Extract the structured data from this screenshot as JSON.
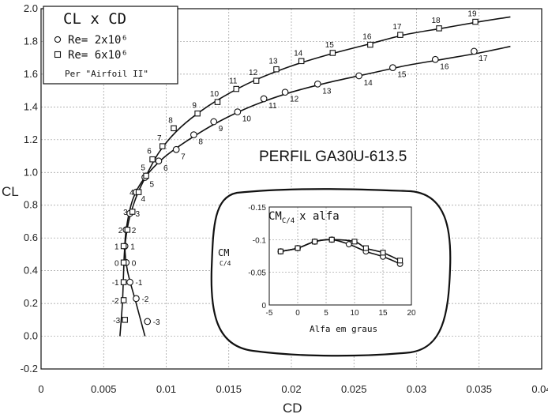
{
  "chart_data": [
    {
      "type": "line",
      "xlabel": "CD",
      "ylabel": "CL",
      "xlim": [
        0,
        0.04
      ],
      "ylim": [
        -0.2,
        2.0
      ],
      "xticks": [
        "0",
        "0.005",
        "0.01",
        "0.015",
        "0.02",
        "0.025",
        "0.03",
        "0.035",
        "0.04"
      ],
      "yticks": [
        "-0.2",
        "0.0",
        "0.2",
        "0.4",
        "0.6",
        "0.8",
        "1.0",
        "1.2",
        "1.4",
        "1.6",
        "1.8",
        "2.0"
      ],
      "grid": true,
      "legend": {
        "title": "CL x CD",
        "entries": [
          "Re= 2x10⁶",
          "Re= 6x10⁶"
        ],
        "note": "Per \"Airfoil II\"",
        "placement": "top-left"
      },
      "annotation": "PERFIL GA30U-613.5",
      "series": [
        {
          "name": "Re= 2x10⁶",
          "marker": "circle",
          "points": [
            {
              "cd": 0.0085,
              "cl": 0.09,
              "label": "-3"
            },
            {
              "cd": 0.0076,
              "cl": 0.23,
              "label": "-2"
            },
            {
              "cd": 0.0071,
              "cl": 0.33,
              "label": "-1"
            },
            {
              "cd": 0.0068,
              "cl": 0.45,
              "label": "0"
            },
            {
              "cd": 0.0067,
              "cl": 0.55,
              "label": "1"
            },
            {
              "cd": 0.0068,
              "cl": 0.65,
              "label": "2"
            },
            {
              "cd": 0.0071,
              "cl": 0.75,
              "label": "3"
            },
            {
              "cd": 0.0076,
              "cl": 0.88,
              "label": "4"
            },
            {
              "cd": 0.0083,
              "cl": 0.97,
              "label": "5"
            },
            {
              "cd": 0.0094,
              "cl": 1.07,
              "label": "6"
            },
            {
              "cd": 0.0108,
              "cl": 1.14,
              "label": "7"
            },
            {
              "cd": 0.0122,
              "cl": 1.23,
              "label": "8"
            },
            {
              "cd": 0.0138,
              "cl": 1.31,
              "label": "9"
            },
            {
              "cd": 0.0157,
              "cl": 1.37,
              "label": "10"
            },
            {
              "cd": 0.0178,
              "cl": 1.45,
              "label": "11"
            },
            {
              "cd": 0.0195,
              "cl": 1.49,
              "label": "12"
            },
            {
              "cd": 0.0221,
              "cl": 1.54,
              "label": "13"
            },
            {
              "cd": 0.0254,
              "cl": 1.59,
              "label": "14"
            },
            {
              "cd": 0.0281,
              "cl": 1.64,
              "label": "15"
            },
            {
              "cd": 0.0315,
              "cl": 1.69,
              "label": "16"
            },
            {
              "cd": 0.0346,
              "cl": 1.74,
              "label": "17"
            }
          ],
          "curve": [
            [
              0.0083,
              0.0
            ],
            [
              0.0076,
              0.2
            ],
            [
              0.0069,
              0.4
            ],
            [
              0.0067,
              0.55
            ],
            [
              0.0069,
              0.7
            ],
            [
              0.0074,
              0.85
            ],
            [
              0.0083,
              0.97
            ],
            [
              0.0098,
              1.09
            ],
            [
              0.0118,
              1.2
            ],
            [
              0.0142,
              1.31
            ],
            [
              0.017,
              1.41
            ],
            [
              0.02,
              1.49
            ],
            [
              0.023,
              1.55
            ],
            [
              0.026,
              1.6
            ],
            [
              0.029,
              1.65
            ],
            [
              0.032,
              1.69
            ],
            [
              0.035,
              1.73
            ],
            [
              0.0375,
              1.77
            ]
          ]
        },
        {
          "name": "Re= 6x10⁶",
          "marker": "square",
          "points": [
            {
              "cd": 0.0067,
              "cl": 0.1,
              "label": "-3"
            },
            {
              "cd": 0.0066,
              "cl": 0.22,
              "label": "-2"
            },
            {
              "cd": 0.0066,
              "cl": 0.33,
              "label": "-1"
            },
            {
              "cd": 0.0066,
              "cl": 0.45,
              "label": "0"
            },
            {
              "cd": 0.0066,
              "cl": 0.55,
              "label": "1"
            },
            {
              "cd": 0.0069,
              "cl": 0.65,
              "label": "2"
            },
            {
              "cd": 0.0073,
              "cl": 0.76,
              "label": "3"
            },
            {
              "cd": 0.0078,
              "cl": 0.88,
              "label": "4"
            },
            {
              "cd": 0.0084,
              "cl": 0.98,
              "label": "5"
            },
            {
              "cd": 0.0089,
              "cl": 1.08,
              "label": "6"
            },
            {
              "cd": 0.0097,
              "cl": 1.16,
              "label": "7"
            },
            {
              "cd": 0.0106,
              "cl": 1.27,
              "label": "8"
            },
            {
              "cd": 0.0125,
              "cl": 1.36,
              "label": "9"
            },
            {
              "cd": 0.0141,
              "cl": 1.43,
              "label": "10"
            },
            {
              "cd": 0.0156,
              "cl": 1.51,
              "label": "11"
            },
            {
              "cd": 0.0172,
              "cl": 1.56,
              "label": "12"
            },
            {
              "cd": 0.0188,
              "cl": 1.63,
              "label": "13"
            },
            {
              "cd": 0.0208,
              "cl": 1.68,
              "label": "14"
            },
            {
              "cd": 0.0233,
              "cl": 1.73,
              "label": "15"
            },
            {
              "cd": 0.0263,
              "cl": 1.78,
              "label": "16"
            },
            {
              "cd": 0.0287,
              "cl": 1.84,
              "label": "17"
            },
            {
              "cd": 0.0318,
              "cl": 1.88,
              "label": "18"
            },
            {
              "cd": 0.0347,
              "cl": 1.92,
              "label": "19"
            }
          ],
          "curve": [
            [
              0.0063,
              0.0
            ],
            [
              0.0065,
              0.2
            ],
            [
              0.0066,
              0.4
            ],
            [
              0.0067,
              0.55
            ],
            [
              0.007,
              0.7
            ],
            [
              0.0076,
              0.85
            ],
            [
              0.0084,
              0.98
            ],
            [
              0.0094,
              1.12
            ],
            [
              0.0108,
              1.25
            ],
            [
              0.0125,
              1.36
            ],
            [
              0.0145,
              1.46
            ],
            [
              0.017,
              1.56
            ],
            [
              0.02,
              1.65
            ],
            [
              0.023,
              1.72
            ],
            [
              0.026,
              1.78
            ],
            [
              0.029,
              1.84
            ],
            [
              0.032,
              1.88
            ],
            [
              0.035,
              1.92
            ],
            [
              0.0375,
              1.95
            ]
          ]
        }
      ]
    },
    {
      "type": "line",
      "title": "CM",
      "title_sub": "C/4",
      "title_suffix": "x alfa",
      "xlabel": "Alfa em graus",
      "ylabel": "CM",
      "ylabel_sub": "C/4",
      "xlim": [
        -5,
        20
      ],
      "ylim": [
        0,
        -0.15
      ],
      "xticks": [
        "-5",
        "0",
        "5",
        "10",
        "15",
        "20"
      ],
      "yticks": [
        "-0.15",
        "-0.1",
        "-0.05",
        "0"
      ],
      "series": [
        {
          "name": "Re= 2x10⁶",
          "marker": "circle",
          "points": [
            [
              -3,
              -0.082
            ],
            [
              0,
              -0.087
            ],
            [
              3,
              -0.097
            ],
            [
              6,
              -0.1
            ],
            [
              9,
              -0.093
            ],
            [
              12,
              -0.082
            ],
            [
              15,
              -0.074
            ],
            [
              18,
              -0.063
            ]
          ]
        },
        {
          "name": "Re= 6x10⁶",
          "marker": "square",
          "points": [
            [
              -3,
              -0.082
            ],
            [
              0,
              -0.087
            ],
            [
              3,
              -0.097
            ],
            [
              6,
              -0.1
            ],
            [
              10,
              -0.097
            ],
            [
              12,
              -0.087
            ],
            [
              15,
              -0.08
            ],
            [
              18,
              -0.068
            ]
          ]
        }
      ]
    }
  ]
}
